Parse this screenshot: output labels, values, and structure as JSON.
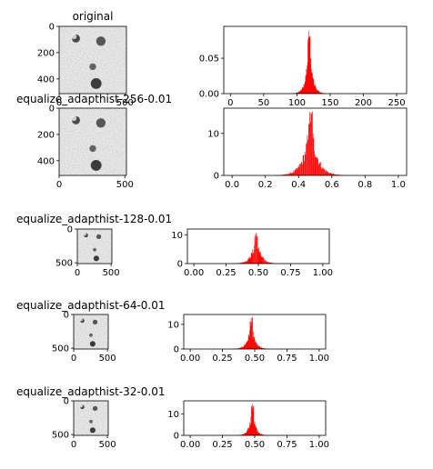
{
  "colors": {
    "histogram": "#ff0000",
    "image_gray": "#8c8c8c"
  },
  "chart_data": [
    {
      "type": "image",
      "title": "original",
      "x_ticks": [
        "0",
        "500"
      ],
      "y_ticks": [
        "0",
        "200",
        "400"
      ]
    },
    {
      "type": "bar",
      "title": "",
      "xlim": [
        -10,
        265
      ],
      "ylim": [
        0,
        0.095
      ],
      "x_ticks": [
        0,
        50,
        100,
        150,
        200,
        250
      ],
      "y_ticks": [
        0.0,
        0.05
      ],
      "x_tick_labels": [
        "0",
        "50",
        "100",
        "150",
        "200",
        "250"
      ],
      "y_tick_labels": [
        "0.00",
        "0.05"
      ],
      "peak_x": 118,
      "peak_y": 0.09,
      "spread": 6,
      "values": [
        {
          "x": 90,
          "y": 0.001
        },
        {
          "x": 105,
          "y": 0.01
        },
        {
          "x": 112,
          "y": 0.045
        },
        {
          "x": 116,
          "y": 0.07
        },
        {
          "x": 118,
          "y": 0.09
        },
        {
          "x": 121,
          "y": 0.06
        },
        {
          "x": 126,
          "y": 0.02
        },
        {
          "x": 135,
          "y": 0.003
        }
      ]
    },
    {
      "type": "image",
      "title": "equalize_adapthist-256-0.01",
      "x_ticks": [
        "0",
        "500"
      ],
      "y_ticks": [
        "0",
        "200",
        "400"
      ]
    },
    {
      "type": "bar",
      "title": "",
      "xlim": [
        -0.05,
        1.05
      ],
      "ylim": [
        0,
        16
      ],
      "x_ticks": [
        0.0,
        0.2,
        0.4,
        0.6,
        0.8,
        1.0
      ],
      "y_ticks": [
        0,
        10
      ],
      "x_tick_labels": [
        "0.0",
        "0.2",
        "0.4",
        "0.6",
        "0.8",
        "1.0"
      ],
      "y_tick_labels": [
        "0",
        "10"
      ],
      "peak_x": 0.47,
      "peak_y": 16,
      "spread": 0.05,
      "values": [
        {
          "x": 0.3,
          "y": 0.5
        },
        {
          "x": 0.4,
          "y": 3
        },
        {
          "x": 0.44,
          "y": 8
        },
        {
          "x": 0.47,
          "y": 16
        },
        {
          "x": 0.5,
          "y": 11
        },
        {
          "x": 0.55,
          "y": 5
        },
        {
          "x": 0.62,
          "y": 1
        }
      ]
    },
    {
      "type": "image",
      "title": "equalize_adapthist-128-0.01",
      "x_ticks": [
        "0",
        "500"
      ],
      "y_ticks": [
        "0",
        "500"
      ]
    },
    {
      "type": "bar",
      "title": "",
      "xlim": [
        -0.05,
        1.05
      ],
      "ylim": [
        0,
        12
      ],
      "x_ticks": [
        0.0,
        0.25,
        0.5,
        0.75,
        1.0
      ],
      "y_ticks": [
        0,
        10
      ],
      "x_tick_labels": [
        "0.00",
        "0.25",
        "0.50",
        "0.75",
        "1.00"
      ],
      "y_tick_labels": [
        "0",
        "10"
      ],
      "peak_x": 0.48,
      "peak_y": 11,
      "spread": 0.045,
      "values": [
        {
          "x": 0.35,
          "y": 0.6
        },
        {
          "x": 0.42,
          "y": 4
        },
        {
          "x": 0.48,
          "y": 11
        },
        {
          "x": 0.54,
          "y": 4
        },
        {
          "x": 0.6,
          "y": 0.8
        }
      ]
    },
    {
      "type": "image",
      "title": "equalize_adapthist-64-0.01",
      "x_ticks": [
        "0",
        "500"
      ],
      "y_ticks": [
        "0",
        "500"
      ]
    },
    {
      "type": "bar",
      "title": "",
      "xlim": [
        -0.05,
        1.05
      ],
      "ylim": [
        0,
        14
      ],
      "x_ticks": [
        0.0,
        0.25,
        0.5,
        0.75,
        1.0
      ],
      "y_ticks": [
        0,
        10
      ],
      "x_tick_labels": [
        "0.00",
        "0.25",
        "0.50",
        "0.75",
        "1.00"
      ],
      "y_tick_labels": [
        "0",
        "10"
      ],
      "peak_x": 0.47,
      "peak_y": 13,
      "spread": 0.035,
      "values": [
        {
          "x": 0.38,
          "y": 1
        },
        {
          "x": 0.43,
          "y": 5
        },
        {
          "x": 0.47,
          "y": 13
        },
        {
          "x": 0.52,
          "y": 4
        },
        {
          "x": 0.58,
          "y": 0.8
        }
      ]
    },
    {
      "type": "image",
      "title": "equalize_adapthist-32-0.01",
      "x_ticks": [
        "0",
        "500"
      ],
      "y_ticks": [
        "0",
        "500"
      ]
    },
    {
      "type": "bar",
      "title": "",
      "xlim": [
        -0.05,
        1.05
      ],
      "ylim": [
        0,
        16
      ],
      "x_ticks": [
        0.0,
        0.25,
        0.5,
        0.75,
        1.0
      ],
      "y_ticks": [
        0,
        10
      ],
      "x_tick_labels": [
        "0.00",
        "0.25",
        "0.50",
        "0.75",
        "1.00"
      ],
      "y_tick_labels": [
        "0",
        "10"
      ],
      "peak_x": 0.48,
      "peak_y": 15,
      "spread": 0.03,
      "values": [
        {
          "x": 0.4,
          "y": 1
        },
        {
          "x": 0.45,
          "y": 6
        },
        {
          "x": 0.48,
          "y": 15
        },
        {
          "x": 0.52,
          "y": 5
        },
        {
          "x": 0.58,
          "y": 0.6
        }
      ]
    }
  ]
}
